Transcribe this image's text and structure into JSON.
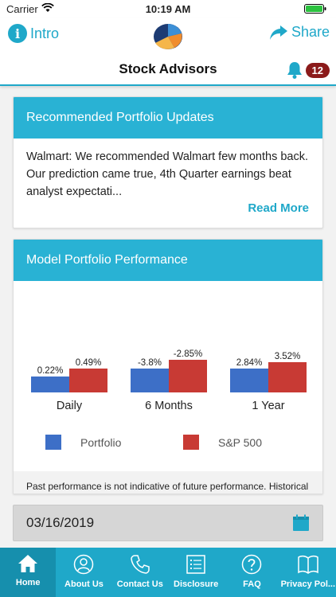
{
  "status_bar": {
    "carrier": "Carrier",
    "time": "10:19 AM"
  },
  "header": {
    "intro_label": "Intro",
    "share_label": "Share",
    "title": "Stock Advisors",
    "notification_count": "12"
  },
  "updates_card": {
    "title": "Recommended Portfolio Updates",
    "body": "Walmart: We recommended Walmart few months back. Our prediction came true, 4th Quarter earnings beat analyst expectati...",
    "read_more": "Read More"
  },
  "performance_card": {
    "title": "Model Portfolio Performance",
    "legend": [
      {
        "label": "Portfolio",
        "color": "#3d6fc7"
      },
      {
        "label": "S&P 500",
        "color": "#c83a34"
      }
    ],
    "disclaimer": "Past performance is not indicative of future performance. Historical Performance is for holding the current portfolio for the length of time shown"
  },
  "chart_data": {
    "type": "bar",
    "categories": [
      "Daily",
      "6 Months",
      "1 Year"
    ],
    "series": [
      {
        "name": "Portfolio",
        "values": [
          0.22,
          -3.8,
          2.84
        ],
        "labels": [
          "0.22%",
          "-3.8%",
          "2.84%"
        ],
        "color": "#3d6fc7"
      },
      {
        "name": "S&P 500",
        "values": [
          0.49,
          -2.85,
          3.52
        ],
        "labels": [
          "0.49%",
          "-2.85%",
          "3.52%"
        ],
        "color": "#c83a34"
      }
    ]
  },
  "date_bar": {
    "date": "03/16/2019"
  },
  "tabs": [
    {
      "label": "Home",
      "icon": "home-icon"
    },
    {
      "label": "About Us",
      "icon": "person-icon"
    },
    {
      "label": "Contact Us",
      "icon": "phone-icon"
    },
    {
      "label": "Disclosure",
      "icon": "list-icon"
    },
    {
      "label": "FAQ",
      "icon": "question-icon"
    },
    {
      "label": "Privacy Pol...",
      "icon": "book-icon"
    }
  ]
}
